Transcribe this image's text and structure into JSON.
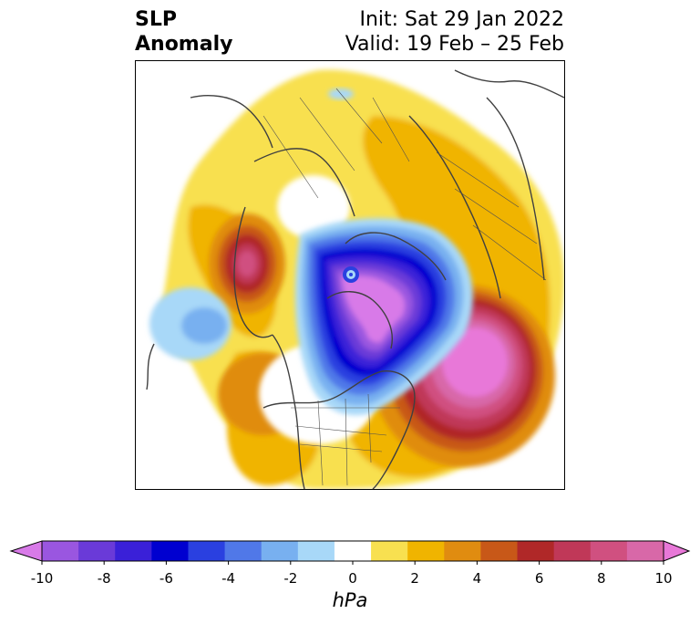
{
  "header": {
    "title_line1": "SLP",
    "title_line2": "Anomaly",
    "init": "Init: Sat 29 Jan 2022",
    "valid": "Valid: 19 Feb – 25 Feb"
  },
  "map": {
    "projection": "north-polar-stereographic",
    "field": "sea-level-pressure-anomaly",
    "features": [
      {
        "name": "arctic-low",
        "value": -9
      },
      {
        "name": "north-atlantic-high",
        "value": 9
      },
      {
        "name": "north-pacific-coast-high",
        "value": 7
      },
      {
        "name": "central-pacific-low",
        "value": -3
      }
    ]
  },
  "colorbar": {
    "unit_label": "hPa",
    "ticks": [
      "-10",
      "-8",
      "-6",
      "-4",
      "-2",
      "0",
      "2",
      "4",
      "6",
      "8",
      "10"
    ],
    "colors": [
      "#d87ae8",
      "#9a56e0",
      "#6a3ad8",
      "#3a20d8",
      "#0000d0",
      "#2a40e0",
      "#5078e8",
      "#78b0f0",
      "#a8d8f8",
      "#ffffff",
      "#f8e050",
      "#f0b400",
      "#e08c10",
      "#c85818",
      "#b02828",
      "#c03858",
      "#d05080",
      "#d868a8",
      "#e878d8"
    ]
  }
}
